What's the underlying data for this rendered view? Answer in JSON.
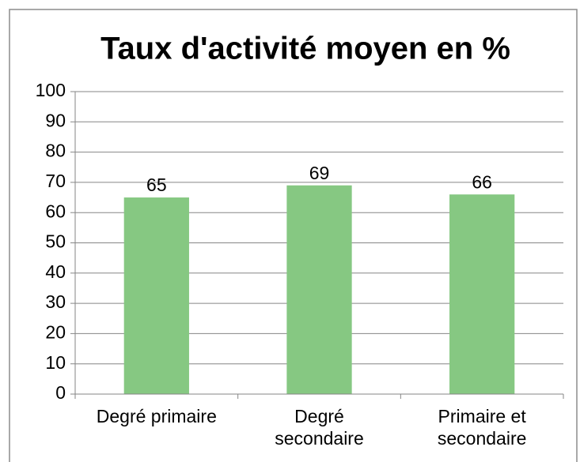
{
  "chart_data": {
    "type": "bar",
    "title": "Taux d'activité moyen en %",
    "categories": [
      "Degré primaire",
      "Degré secondaire",
      "Primaire et secondaire"
    ],
    "values": [
      65,
      69,
      66
    ],
    "color": "#86c882",
    "ylim": [
      0,
      100
    ],
    "yticks": [
      0,
      10,
      20,
      30,
      40,
      50,
      60,
      70,
      80,
      90,
      100
    ],
    "grid": true
  }
}
